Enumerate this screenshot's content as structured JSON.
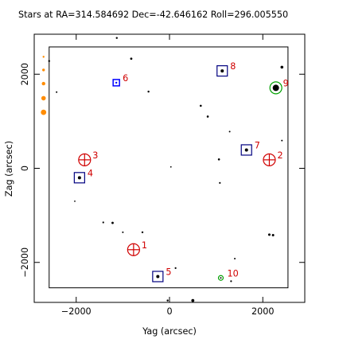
{
  "chart_data": {
    "type": "scatter",
    "title": "Stars at RA=314.584692 Dec=-42.646162 Roll=296.005550",
    "xlabel": "Yag (arcsec)",
    "ylabel": "Zag (arcsec)",
    "xlim": [
      -2900,
      2900
    ],
    "ylim": [
      -2850,
      2850
    ],
    "xticks": [
      -2000,
      0,
      2000
    ],
    "yticks": [
      -2000,
      0,
      2000
    ],
    "tick_labels_x": [
      "−2000",
      "0",
      "2000"
    ],
    "tick_labels_y": [
      "−2000",
      "0",
      "2000"
    ],
    "grid": false,
    "colors": {
      "axis": "#000000",
      "stars": "#000000",
      "guide_box": "#000080",
      "guide_box_alt": "#0000ff",
      "acq_circle": "#d00000",
      "monitor_circle": "#00a000",
      "label": "#d00000",
      "edge_marker": "#ff8c00"
    },
    "fov_box": {
      "y": [
        -2580,
        2540
      ],
      "z": [
        -2540,
        2580
      ]
    },
    "stars": [
      {
        "y": -1130,
        "z": 2770,
        "size": 1.2
      },
      {
        "y": -820,
        "z": 2330,
        "size": 1.4
      },
      {
        "y": -2580,
        "z": 2280,
        "size": 1.2
      },
      {
        "y": -2420,
        "z": 1620,
        "size": 1.0
      },
      {
        "y": -450,
        "z": 1630,
        "size": 1.2
      },
      {
        "y": 670,
        "z": 1330,
        "size": 1.3
      },
      {
        "y": 820,
        "z": 1100,
        "size": 1.3
      },
      {
        "y": 1290,
        "z": 780,
        "size": 1.0
      },
      {
        "y": 2410,
        "z": 590,
        "size": 1.0
      },
      {
        "y": 2410,
        "z": 2150,
        "size": 1.8
      },
      {
        "y": 1060,
        "z": 190,
        "size": 1.3
      },
      {
        "y": 30,
        "z": 30,
        "size": 0.9
      },
      {
        "y": 1080,
        "z": -310,
        "size": 1.1
      },
      {
        "y": -2030,
        "z": -700,
        "size": 0.9
      },
      {
        "y": -1420,
        "z": -1150,
        "size": 1.1
      },
      {
        "y": -1220,
        "z": -1160,
        "size": 1.4
      },
      {
        "y": -1000,
        "z": -1360,
        "size": 1.0
      },
      {
        "y": -580,
        "z": -1360,
        "size": 1.2
      },
      {
        "y": 2140,
        "z": -1410,
        "size": 1.5
      },
      {
        "y": 2220,
        "z": -1420,
        "size": 1.5
      },
      {
        "y": 1400,
        "z": -1920,
        "size": 1.0
      },
      {
        "y": 130,
        "z": -2120,
        "size": 1.1
      },
      {
        "y": 1320,
        "z": -2400,
        "size": 1.1
      },
      {
        "y": 500,
        "z": -2810,
        "size": 1.9
      },
      {
        "y": -40,
        "z": -2810,
        "size": 1.2
      }
    ],
    "catalog_stars": [
      {
        "id": "1",
        "y": -770,
        "z": -1730,
        "type": "acq"
      },
      {
        "id": "2",
        "y": 2140,
        "z": 180,
        "type": "acq"
      },
      {
        "id": "3",
        "y": -1820,
        "z": 180,
        "type": "acq"
      },
      {
        "id": "4",
        "y": -1930,
        "z": -200,
        "type": "guide"
      },
      {
        "id": "5",
        "y": -250,
        "z": -2300,
        "type": "guide"
      },
      {
        "id": "6",
        "y": -1140,
        "z": 1820,
        "type": "guide_small"
      },
      {
        "id": "7",
        "y": 1650,
        "z": 390,
        "type": "guide"
      },
      {
        "id": "8",
        "y": 1130,
        "z": 2070,
        "type": "guide"
      },
      {
        "id": "9",
        "y": 2280,
        "z": 1710,
        "type": "monitor"
      },
      {
        "id": "10",
        "y": 1100,
        "z": -2330,
        "type": "monitor_small"
      }
    ],
    "edge_markers": [
      {
        "y": -2700,
        "z": 2370,
        "size": 1.2
      },
      {
        "y": -2700,
        "z": 2090,
        "size": 1.7
      },
      {
        "y": -2700,
        "z": 1800,
        "size": 2.2
      },
      {
        "y": -2700,
        "z": 1490,
        "size": 2.8
      },
      {
        "y": -2700,
        "z": 1190,
        "size": 3.4
      }
    ]
  }
}
